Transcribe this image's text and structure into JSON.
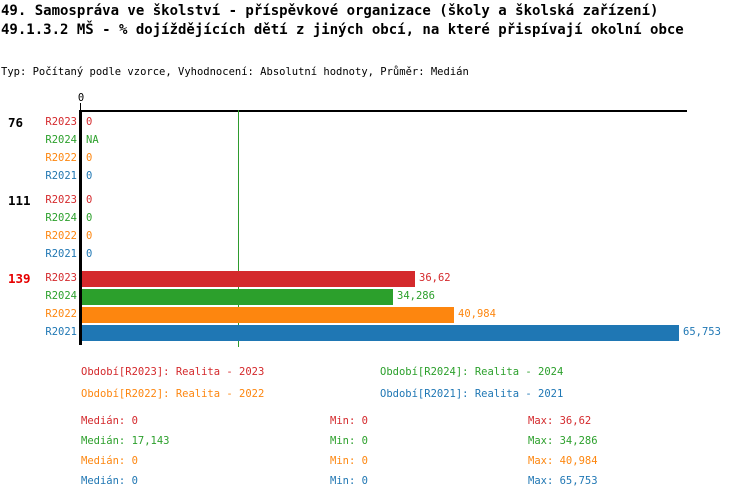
{
  "header": {
    "title_line1": "49. Samospráva ve školství - příspěvkové organizace (školy a školská zařízení)",
    "title_line2": "49.1.3.2 MŠ - % dojíždějících dětí z jiných obcí, na které přispívají okolní obce",
    "meta_line": "Typ: Počítaný podle vzorce, Vyhodnocení: Absolutní hodnoty, Průměr: Medián"
  },
  "colors": {
    "R2023": "#d4292c",
    "R2024": "#2ca02c",
    "R2022": "#fd860f",
    "R2021": "#1f77b4",
    "axis": "#000000",
    "median_line": "#2e9b2e",
    "group_normal": "#000000",
    "group_highlight": "#e60000"
  },
  "chart_data": {
    "type": "bar",
    "orientation": "horizontal",
    "axis_tick_label": "0",
    "x_axis_origin_value": 0,
    "x_max_units": 66.6,
    "median_line_value": 17.143,
    "grid": "off",
    "legend_position": "bottom",
    "series_order": [
      "R2023",
      "R2024",
      "R2022",
      "R2021"
    ],
    "groups": [
      {
        "label": "76",
        "highlighted": false,
        "rows": [
          {
            "series": "R2023",
            "display": "0",
            "value": 0
          },
          {
            "series": "R2024",
            "display": "NA",
            "value": null
          },
          {
            "series": "R2022",
            "display": "0",
            "value": 0
          },
          {
            "series": "R2021",
            "display": "0",
            "value": 0
          }
        ]
      },
      {
        "label": "111",
        "highlighted": false,
        "rows": [
          {
            "series": "R2023",
            "display": "0",
            "value": 0
          },
          {
            "series": "R2024",
            "display": "0",
            "value": 0
          },
          {
            "series": "R2022",
            "display": "0",
            "value": 0
          },
          {
            "series": "R2021",
            "display": "0",
            "value": 0
          }
        ]
      },
      {
        "label": "139",
        "highlighted": true,
        "rows": [
          {
            "series": "R2023",
            "display": "36,62",
            "value": 36.62
          },
          {
            "series": "R2024",
            "display": "34,286",
            "value": 34.286
          },
          {
            "series": "R2022",
            "display": "40,984",
            "value": 40.984
          },
          {
            "series": "R2021",
            "display": "65,753",
            "value": 65.753
          }
        ]
      }
    ],
    "legend": [
      {
        "series": "R2023",
        "label": "Období[R2023]: Realita - 2023"
      },
      {
        "series": "R2024",
        "label": "Období[R2024]: Realita - 2024"
      },
      {
        "series": "R2022",
        "label": "Období[R2022]: Realita - 2022"
      },
      {
        "series": "R2021",
        "label": "Období[R2021]: Realita - 2021"
      }
    ],
    "stats": [
      {
        "series": "R2023",
        "median": "Medián: 0",
        "min": "Min: 0",
        "max": "Max: 36,62"
      },
      {
        "series": "R2024",
        "median": "Medián: 17,143",
        "min": "Min: 0",
        "max": "Max: 34,286"
      },
      {
        "series": "R2022",
        "median": "Medián: 0",
        "min": "Min: 0",
        "max": "Max: 40,984"
      },
      {
        "series": "R2021",
        "median": "Medián: 0",
        "min": "Min: 0",
        "max": "Max: 65,753"
      }
    ]
  }
}
